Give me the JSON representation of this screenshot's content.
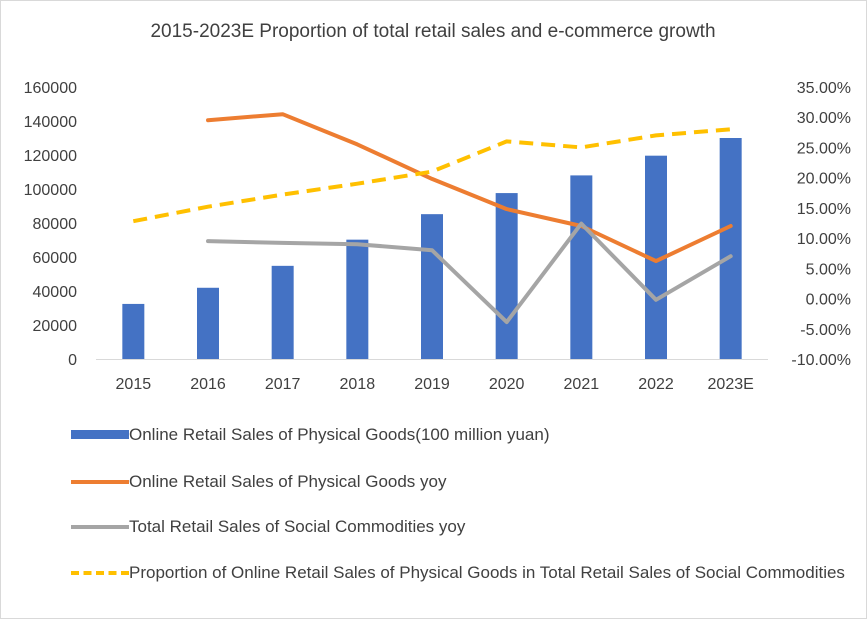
{
  "chart_data": {
    "type": "bar",
    "title": "2015-2023E Proportion of total retail sales and e-commerce growth",
    "categories": [
      "2015",
      "2016",
      "2017",
      "2018",
      "2019",
      "2020",
      "2021",
      "2022",
      "2023E"
    ],
    "ylim_left": [
      0,
      160000
    ],
    "yticks_left": [
      "0",
      "20000",
      "40000",
      "60000",
      "80000",
      "100000",
      "120000",
      "140000",
      "160000"
    ],
    "ylim_right": [
      -0.1,
      0.35
    ],
    "yticks_right": [
      "-10.00%",
      "-5.00%",
      "0.00%",
      "5.00%",
      "10.00%",
      "15.00%",
      "20.00%",
      "25.00%",
      "30.00%",
      "35.00%"
    ],
    "grid": false,
    "legend_position": "bottom",
    "series": [
      {
        "name": "Online Retail Sales of Physical Goods(100 million yuan)",
        "type": "bar",
        "axis": "left",
        "color": "#4472c4",
        "values": [
          32400,
          41900,
          54800,
          70200,
          85200,
          97600,
          108000,
          119600,
          130000
        ]
      },
      {
        "name": "Online Retail Sales of Physical Goods yoy",
        "type": "line",
        "axis": "right",
        "color": "#ed7d31",
        "dash": false,
        "values": [
          null,
          0.295,
          0.305,
          0.255,
          0.198,
          0.148,
          0.12,
          0.062,
          0.12
        ]
      },
      {
        "name": "Total Retail Sales of Social Commodities yoy",
        "type": "line",
        "axis": "right",
        "color": "#a5a5a5",
        "dash": false,
        "values": [
          null,
          0.095,
          0.092,
          0.09,
          0.08,
          -0.039,
          0.124,
          -0.002,
          0.07
        ]
      },
      {
        "name": "Proportion of Online Retail Sales of Physical Goods in Total Retail Sales of Social Commodities",
        "type": "line",
        "axis": "right",
        "color": "#ffc000",
        "dash": true,
        "values": [
          0.128,
          0.152,
          0.172,
          0.19,
          0.21,
          0.26,
          0.25,
          0.27,
          0.28
        ]
      }
    ]
  }
}
